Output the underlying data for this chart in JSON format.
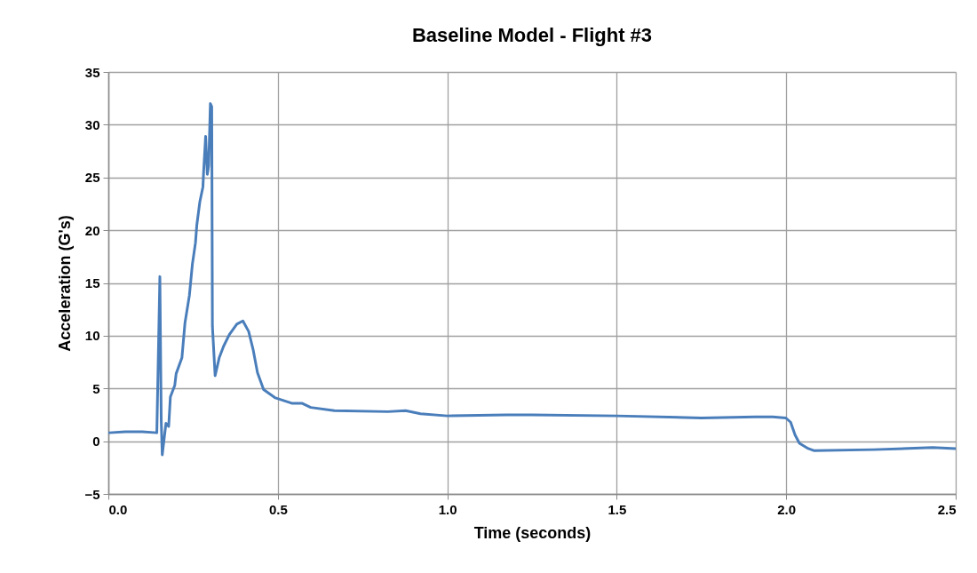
{
  "chart_data": {
    "type": "line",
    "title": "Baseline Model - Flight #3",
    "xlabel": "Time (seconds)",
    "ylabel": "Acceleration (G's)",
    "x": [
      0.003,
      0.05,
      0.1,
      0.143,
      0.152,
      0.156,
      0.159,
      0.17,
      0.178,
      0.183,
      0.196,
      0.2,
      0.217,
      0.226,
      0.239,
      0.248,
      0.257,
      0.261,
      0.27,
      0.279,
      0.281,
      0.287,
      0.292,
      0.296,
      0.301,
      0.305,
      0.307,
      0.315,
      0.327,
      0.34,
      0.357,
      0.379,
      0.397,
      0.414,
      0.427,
      0.44,
      0.458,
      0.493,
      0.541,
      0.571,
      0.597,
      0.667,
      0.825,
      0.877,
      0.921,
      1.0,
      1.174,
      1.25,
      1.5,
      1.75,
      1.908,
      1.96,
      1.999,
      2.013,
      2.026,
      2.039,
      2.065,
      2.083,
      2.257,
      2.432,
      2.5
    ],
    "series": [
      {
        "color": "#4a7ebb",
        "values": [
          0.8,
          0.9,
          0.9,
          0.8,
          15.6,
          2.0,
          -1.3,
          1.7,
          1.4,
          4.2,
          5.3,
          6.4,
          7.9,
          11.2,
          13.8,
          16.8,
          18.8,
          20.5,
          22.7,
          24.1,
          25.5,
          28.9,
          25.3,
          26.1,
          32.0,
          31.7,
          10.9,
          6.2,
          7.9,
          9.0,
          10.1,
          11.1,
          11.4,
          10.4,
          8.7,
          6.5,
          4.9,
          4.1,
          3.6,
          3.6,
          3.2,
          2.9,
          2.8,
          2.9,
          2.6,
          2.4,
          2.5,
          2.5,
          2.4,
          2.2,
          2.3,
          2.3,
          2.2,
          1.8,
          0.6,
          -0.2,
          -0.7,
          -0.9,
          -0.8,
          -0.6,
          -0.7
        ]
      }
    ],
    "xlim": [
      0,
      2.5
    ],
    "xticks": [
      {
        "value": 0,
        "label": "0.0"
      },
      0.5,
      {
        "value": 1,
        "label": "1.0"
      },
      1.5,
      {
        "value": 2,
        "label": "2.0"
      },
      2.5
    ],
    "ylim": [
      -5,
      35
    ],
    "yticks": [
      -5,
      0,
      5,
      10,
      15,
      20,
      25,
      30,
      35
    ],
    "grid": true,
    "marker": "none",
    "line_style": "solid"
  }
}
